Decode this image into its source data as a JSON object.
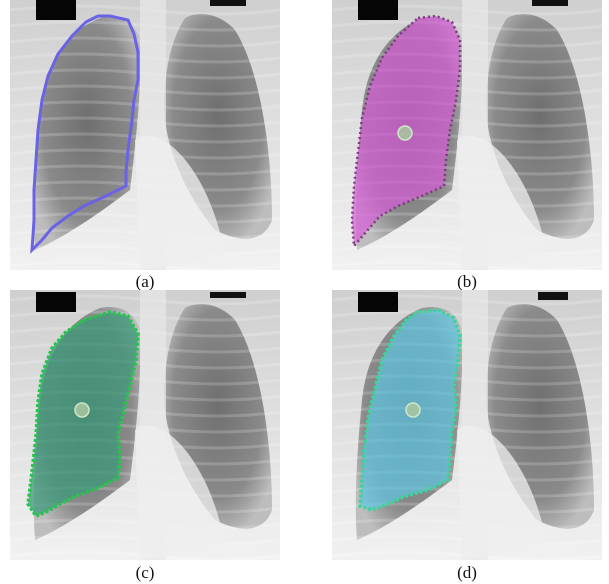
{
  "panels": [
    {
      "caption": "(a)",
      "overlay": "outline",
      "color": "#6a63e6",
      "fill": "none",
      "seed_point": false
    },
    {
      "caption": "(b)",
      "overlay": "filled-mask",
      "color": "#7a3d7c",
      "fill": "#d55bd8",
      "seed_point": true
    },
    {
      "caption": "(c)",
      "overlay": "filled-mask",
      "color": "#27c44f",
      "fill": "#3c9a7a",
      "seed_point": true
    },
    {
      "caption": "(d)",
      "overlay": "filled-mask",
      "color": "#3fd39c",
      "fill": "#5fc7e4",
      "seed_point": true
    }
  ]
}
